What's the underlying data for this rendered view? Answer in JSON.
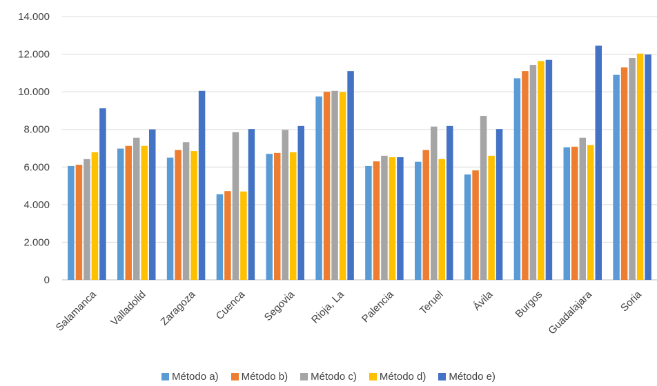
{
  "chart_data": {
    "type": "bar",
    "title": "",
    "xlabel": "",
    "ylabel": "",
    "ylim": [
      0,
      14000
    ],
    "yticks": [
      0,
      2000,
      4000,
      6000,
      8000,
      10000,
      12000,
      14000
    ],
    "ytick_labels": [
      "0",
      "2.000",
      "4.000",
      "6.000",
      "8.000",
      "10.000",
      "12.000",
      "14.000"
    ],
    "grid": true,
    "legend_position": "bottom",
    "categories": [
      "Salamanca",
      "Valladolid",
      "Zaragoza",
      "Cuenca",
      "Segovia",
      "Rioja, La",
      "Palencia",
      "Teruel",
      "Ávila",
      "Burgos",
      "Guadalajara",
      "Soria"
    ],
    "series": [
      {
        "name": "Método a)",
        "color": "#5B9BD5",
        "values": [
          6050,
          6980,
          6500,
          4550,
          6700,
          9750,
          6050,
          6280,
          5600,
          10720,
          7050,
          10900
        ]
      },
      {
        "name": "Método b)",
        "color": "#ED7D31",
        "values": [
          6120,
          7120,
          6900,
          4720,
          6750,
          10000,
          6300,
          6900,
          5820,
          11100,
          7080,
          11300
        ]
      },
      {
        "name": "Método c)",
        "color": "#A5A5A5",
        "values": [
          6420,
          7560,
          7320,
          7850,
          7970,
          10050,
          6600,
          8150,
          8720,
          11430,
          7560,
          11800
        ]
      },
      {
        "name": "Método d)",
        "color": "#FFC000",
        "values": [
          6780,
          7120,
          6850,
          4700,
          6780,
          9980,
          6520,
          6420,
          6600,
          11630,
          7170,
          12030
        ]
      },
      {
        "name": "Método e)",
        "color": "#4472C4",
        "values": [
          9120,
          8000,
          10050,
          8020,
          8180,
          11100,
          6520,
          8180,
          8020,
          11700,
          12450,
          11980
        ]
      }
    ]
  }
}
